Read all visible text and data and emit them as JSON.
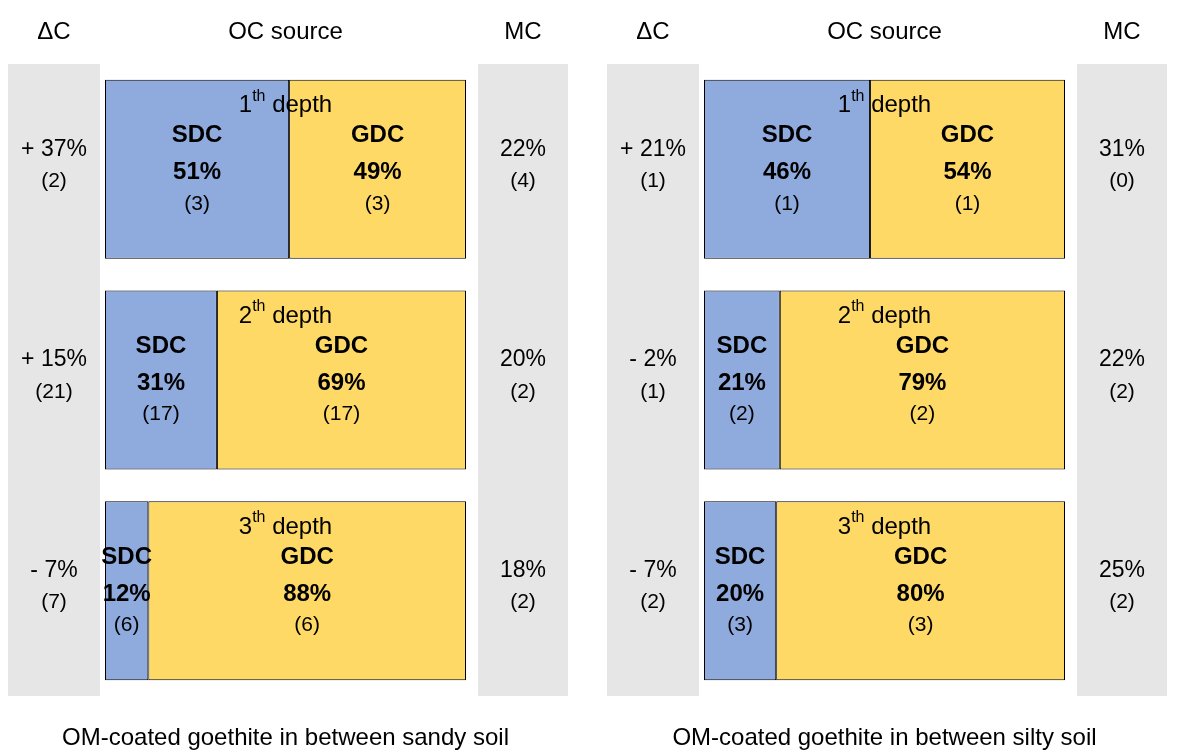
{
  "chart_data": [
    {
      "type": "bar",
      "orientation": "horizontal",
      "stacked": true,
      "title": "OC source",
      "xlabel": "OM-coated goethite in between sandy soil",
      "categories": [
        "1$^{th}$ depth",
        "2$^{th}$ depth",
        "3$^{th}$ depth"
      ],
      "xlim": [
        0,
        100
      ],
      "tick_labels": false,
      "legend": false,
      "series": [
        {
          "name": "SDC",
          "color": "#8faadc",
          "values": [
            51,
            31,
            12
          ],
          "value_labels": [
            "51%\n(3)",
            "31%\n(17)",
            "12%\n(6)"
          ]
        },
        {
          "name": "GDC",
          "color": "#ffd966",
          "values": [
            49,
            69,
            88
          ],
          "value_labels": [
            "49%\n(3)",
            "69%\n(17)",
            "88%\n(6)"
          ]
        }
      ],
      "annotations": [
        "ΔC",
        "MC",
        "+ 37%\n(2)",
        "22%\n(4)",
        "+ 15%\n(21)",
        "20%\n(2)",
        "- 7%\n(7)",
        "18%\n(2)"
      ]
    },
    {
      "type": "bar",
      "orientation": "horizontal",
      "stacked": true,
      "title": "OC source",
      "xlabel": "OM-coated goethite in between silty soil",
      "categories": [
        "1$^{th}$ depth",
        "2$^{th}$ depth",
        "3$^{th}$ depth"
      ],
      "xlim": [
        0,
        100
      ],
      "tick_labels": false,
      "legend": false,
      "series": [
        {
          "name": "SDC",
          "color": "#8faadc",
          "values": [
            46,
            21,
            20
          ],
          "value_labels": [
            "46%\n(1)",
            "21%\n(2)",
            "20%\n(3)"
          ]
        },
        {
          "name": "GDC",
          "color": "#ffd966",
          "values": [
            54,
            79,
            80
          ],
          "value_labels": [
            "54%\n(1)",
            "79%\n(2)",
            "80%\n(3)"
          ]
        }
      ],
      "annotations": [
        "ΔC",
        "MC",
        "+ 21%\n(1)",
        "31%\n(0)",
        "- 2%\n(1)",
        "22%\n(2)",
        "- 7%\n(2)",
        "25%\n(2)"
      ]
    }
  ]
}
